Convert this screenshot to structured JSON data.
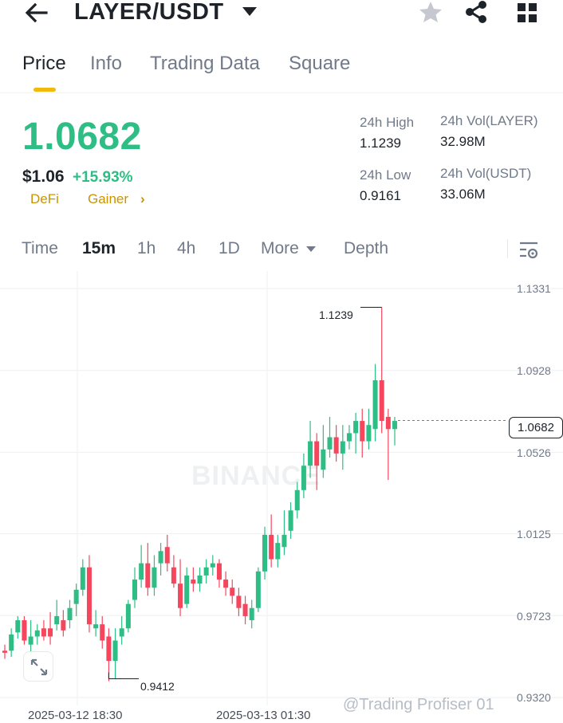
{
  "header": {
    "pair": "LAYER/USDT",
    "icons": [
      "back-arrow-icon",
      "caret-down-icon",
      "star-icon",
      "share-icon",
      "grid-icon"
    ]
  },
  "tabs": [
    {
      "label": "Price",
      "active": true
    },
    {
      "label": "Info",
      "active": false
    },
    {
      "label": "Trading Data",
      "active": false
    },
    {
      "label": "Square",
      "active": false
    }
  ],
  "price": {
    "last": "1.0682",
    "usd": "$1.06",
    "change": "+15.93%",
    "tags": [
      "DeFi",
      "Gainer"
    ],
    "tag_chevron": "›"
  },
  "stats": {
    "high_label": "24h High",
    "high_value": "1.1239",
    "low_label": "24h Low",
    "low_value": "0.9161",
    "vol_base_label": "24h Vol(LAYER)",
    "vol_base_value": "32.98M",
    "vol_quote_label": "24h Vol(USDT)",
    "vol_quote_value": "33.06M"
  },
  "intervals": {
    "items": [
      "Time",
      "15m",
      "1h",
      "4h",
      "1D",
      "More"
    ],
    "active": "15m",
    "depth": "Depth"
  },
  "chart": {
    "y_ticks": [
      "1.1331",
      "1.0928",
      "1.0526",
      "1.0125",
      "0.9723",
      "0.9320"
    ],
    "x_ticks": [
      "2025-03-12 18:30",
      "2025-03-13 01:30"
    ],
    "current_price": "1.0682",
    "high_marker": "1.1239",
    "low_marker": "0.9412",
    "watermark": "BINANCE",
    "credit": "@Trading Profiser 01",
    "colors": {
      "up": "#2ebd85",
      "down": "#f6465d",
      "grid": "#eef0f2"
    }
  },
  "chart_data": {
    "type": "candlestick",
    "y_axis_ticks": [
      1.1331,
      1.0928,
      1.0526,
      1.0125,
      0.9723,
      0.932
    ],
    "ylim": [
      0.932,
      1.1331
    ],
    "x_ticks": [
      "2025-03-12 18:30",
      "2025-03-13 01:30"
    ],
    "current_price": 1.0682,
    "high": 1.1239,
    "low": 0.9412,
    "candles": [
      {
        "o": 0.955,
        "h": 0.958,
        "l": 0.951,
        "c": 0.954
      },
      {
        "o": 0.955,
        "h": 0.966,
        "l": 0.952,
        "c": 0.963
      },
      {
        "o": 0.964,
        "h": 0.972,
        "l": 0.961,
        "c": 0.97
      },
      {
        "o": 0.97,
        "h": 0.972,
        "l": 0.958,
        "c": 0.96
      },
      {
        "o": 0.958,
        "h": 0.97,
        "l": 0.954,
        "c": 0.962
      },
      {
        "o": 0.962,
        "h": 0.968,
        "l": 0.958,
        "c": 0.965
      },
      {
        "o": 0.966,
        "h": 0.97,
        "l": 0.96,
        "c": 0.962
      },
      {
        "o": 0.966,
        "h": 0.974,
        "l": 0.958,
        "c": 0.962
      },
      {
        "o": 0.968,
        "h": 0.98,
        "l": 0.965,
        "c": 0.972
      },
      {
        "o": 0.97,
        "h": 0.975,
        "l": 0.962,
        "c": 0.965
      },
      {
        "o": 0.97,
        "h": 0.98,
        "l": 0.966,
        "c": 0.976
      },
      {
        "o": 0.978,
        "h": 0.988,
        "l": 0.972,
        "c": 0.985
      },
      {
        "o": 0.985,
        "h": 1.0,
        "l": 0.982,
        "c": 0.996
      },
      {
        "o": 0.996,
        "h": 1.002,
        "l": 0.964,
        "c": 0.968
      },
      {
        "o": 0.966,
        "h": 0.975,
        "l": 0.962,
        "c": 0.968
      },
      {
        "o": 0.968,
        "h": 0.972,
        "l": 0.956,
        "c": 0.96
      },
      {
        "o": 0.962,
        "h": 0.966,
        "l": 0.94,
        "c": 0.95
      },
      {
        "o": 0.95,
        "h": 0.966,
        "l": 0.941,
        "c": 0.96
      },
      {
        "o": 0.962,
        "h": 0.972,
        "l": 0.958,
        "c": 0.966
      },
      {
        "o": 0.966,
        "h": 0.98,
        "l": 0.964,
        "c": 0.978
      },
      {
        "o": 0.98,
        "h": 0.996,
        "l": 0.976,
        "c": 0.99
      },
      {
        "o": 0.99,
        "h": 1.007,
        "l": 0.986,
        "c": 0.998
      },
      {
        "o": 0.998,
        "h": 1.008,
        "l": 0.982,
        "c": 0.986
      },
      {
        "o": 0.986,
        "h": 1.002,
        "l": 0.982,
        "c": 0.996
      },
      {
        "o": 0.998,
        "h": 1.008,
        "l": 0.992,
        "c": 1.004
      },
      {
        "o": 1.006,
        "h": 1.012,
        "l": 0.994,
        "c": 0.998
      },
      {
        "o": 0.996,
        "h": 1.002,
        "l": 0.986,
        "c": 0.988
      },
      {
        "o": 0.988,
        "h": 1.0,
        "l": 0.972,
        "c": 0.976
      },
      {
        "o": 0.978,
        "h": 0.996,
        "l": 0.976,
        "c": 0.992
      },
      {
        "o": 0.99,
        "h": 0.996,
        "l": 0.984,
        "c": 0.988
      },
      {
        "o": 0.988,
        "h": 0.996,
        "l": 0.984,
        "c": 0.992
      },
      {
        "o": 0.992,
        "h": 1.0,
        "l": 0.988,
        "c": 0.996
      },
      {
        "o": 0.996,
        "h": 1.002,
        "l": 0.992,
        "c": 0.998
      },
      {
        "o": 0.998,
        "h": 1.0,
        "l": 0.986,
        "c": 0.99
      },
      {
        "o": 0.99,
        "h": 0.994,
        "l": 0.982,
        "c": 0.986
      },
      {
        "o": 0.986,
        "h": 0.99,
        "l": 0.978,
        "c": 0.982
      },
      {
        "o": 0.982,
        "h": 0.986,
        "l": 0.972,
        "c": 0.976
      },
      {
        "o": 0.978,
        "h": 0.982,
        "l": 0.968,
        "c": 0.972
      },
      {
        "o": 0.97,
        "h": 0.98,
        "l": 0.966,
        "c": 0.976
      },
      {
        "o": 0.976,
        "h": 0.996,
        "l": 0.974,
        "c": 0.994
      },
      {
        "o": 0.994,
        "h": 1.016,
        "l": 0.99,
        "c": 1.012
      },
      {
        "o": 1.012,
        "h": 1.022,
        "l": 0.996,
        "c": 1.0
      },
      {
        "o": 1.0,
        "h": 1.012,
        "l": 0.996,
        "c": 1.008
      },
      {
        "o": 1.006,
        "h": 1.024,
        "l": 1.002,
        "c": 1.012
      },
      {
        "o": 1.014,
        "h": 1.028,
        "l": 1.01,
        "c": 1.024
      },
      {
        "o": 1.024,
        "h": 1.038,
        "l": 1.02,
        "c": 1.034
      },
      {
        "o": 1.034,
        "h": 1.052,
        "l": 1.03,
        "c": 1.046
      },
      {
        "o": 1.046,
        "h": 1.068,
        "l": 1.04,
        "c": 1.058
      },
      {
        "o": 1.058,
        "h": 1.062,
        "l": 1.034,
        "c": 1.046
      },
      {
        "o": 1.044,
        "h": 1.066,
        "l": 1.04,
        "c": 1.054
      },
      {
        "o": 1.054,
        "h": 1.07,
        "l": 1.05,
        "c": 1.06
      },
      {
        "o": 1.06,
        "h": 1.066,
        "l": 1.048,
        "c": 1.052
      },
      {
        "o": 1.052,
        "h": 1.066,
        "l": 1.044,
        "c": 1.058
      },
      {
        "o": 1.058,
        "h": 1.066,
        "l": 1.054,
        "c": 1.062
      },
      {
        "o": 1.062,
        "h": 1.072,
        "l": 1.052,
        "c": 1.068
      },
      {
        "o": 1.068,
        "h": 1.074,
        "l": 1.05,
        "c": 1.058
      },
      {
        "o": 1.058,
        "h": 1.074,
        "l": 1.054,
        "c": 1.066
      },
      {
        "o": 1.064,
        "h": 1.096,
        "l": 1.058,
        "c": 1.088
      },
      {
        "o": 1.088,
        "h": 1.1239,
        "l": 1.062,
        "c": 1.068
      },
      {
        "o": 1.07,
        "h": 1.074,
        "l": 1.039,
        "c": 1.064
      },
      {
        "o": 1.064,
        "h": 1.07,
        "l": 1.056,
        "c": 1.068
      }
    ]
  }
}
